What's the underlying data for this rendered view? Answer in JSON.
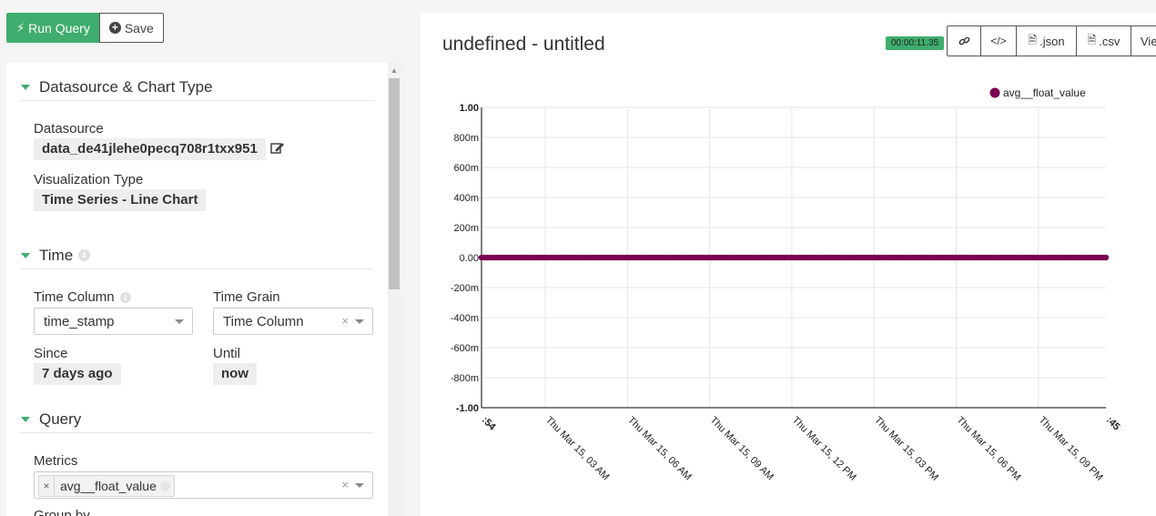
{
  "toolbar": {
    "run_label": "Run Query",
    "save_label": "Save",
    "run_icon": "bolt-icon",
    "save_icon": "plus-circle-icon"
  },
  "sections": {
    "datasource": {
      "title": "Datasource & Chart Type",
      "datasource_label": "Datasource",
      "datasource_value": "data_de41jlehe0pecq708r1txx951",
      "viz_label": "Visualization Type",
      "viz_value": "Time Series - Line Chart"
    },
    "time": {
      "title": "Time",
      "time_column_label": "Time Column",
      "time_column_value": "time_stamp",
      "time_grain_label": "Time Grain",
      "time_grain_value": "Time Column",
      "since_label": "Since",
      "since_value": "7 days ago",
      "until_label": "Until",
      "until_value": "now"
    },
    "query": {
      "title": "Query",
      "metrics_label": "Metrics",
      "metric_chip": "avg__float_value",
      "next_label": "Group by"
    }
  },
  "chart_panel": {
    "title": "undefined - untitled",
    "timer": "00:00:11.35",
    "buttons": [
      {
        "label": "",
        "icon": "link-icon"
      },
      {
        "label": "",
        "icon": "code-icon"
      },
      {
        "label": ".json",
        "icon": "file-icon"
      },
      {
        "label": ".csv",
        "icon": "file-icon"
      },
      {
        "label": "Vie",
        "icon": ""
      }
    ]
  },
  "chart_data": {
    "type": "line",
    "title": "",
    "xlabel": "",
    "ylabel": "",
    "y_ticks": [
      "1.00",
      "800m",
      "600m",
      "400m",
      "200m",
      "0.00",
      "-200m",
      "-400m",
      "-600m",
      "-800m",
      "-1.00"
    ],
    "ylim": [
      -1,
      1
    ],
    "x_ticks": [
      ":54",
      "Thu Mar 15, 03 AM",
      "Thu Mar 15, 06 AM",
      "Thu Mar 15, 09 AM",
      "Thu Mar 15, 12 PM",
      "Thu Mar 15, 03 PM",
      "Thu Mar 15, 06 PM",
      "Thu Mar 15, 09 PM",
      ":45"
    ],
    "grid": true,
    "legend_position": "top-right",
    "series": [
      {
        "name": "avg__float_value",
        "color": "#7b0051",
        "values": [
          0,
          0,
          0,
          0,
          0,
          0,
          0,
          0,
          0,
          0,
          0,
          0,
          0,
          0,
          0,
          0,
          0,
          0,
          0,
          0,
          0,
          0,
          0,
          0,
          0,
          0,
          0,
          0,
          0,
          0,
          0,
          0,
          0,
          0,
          0,
          0,
          0,
          0,
          0,
          0
        ]
      }
    ]
  }
}
